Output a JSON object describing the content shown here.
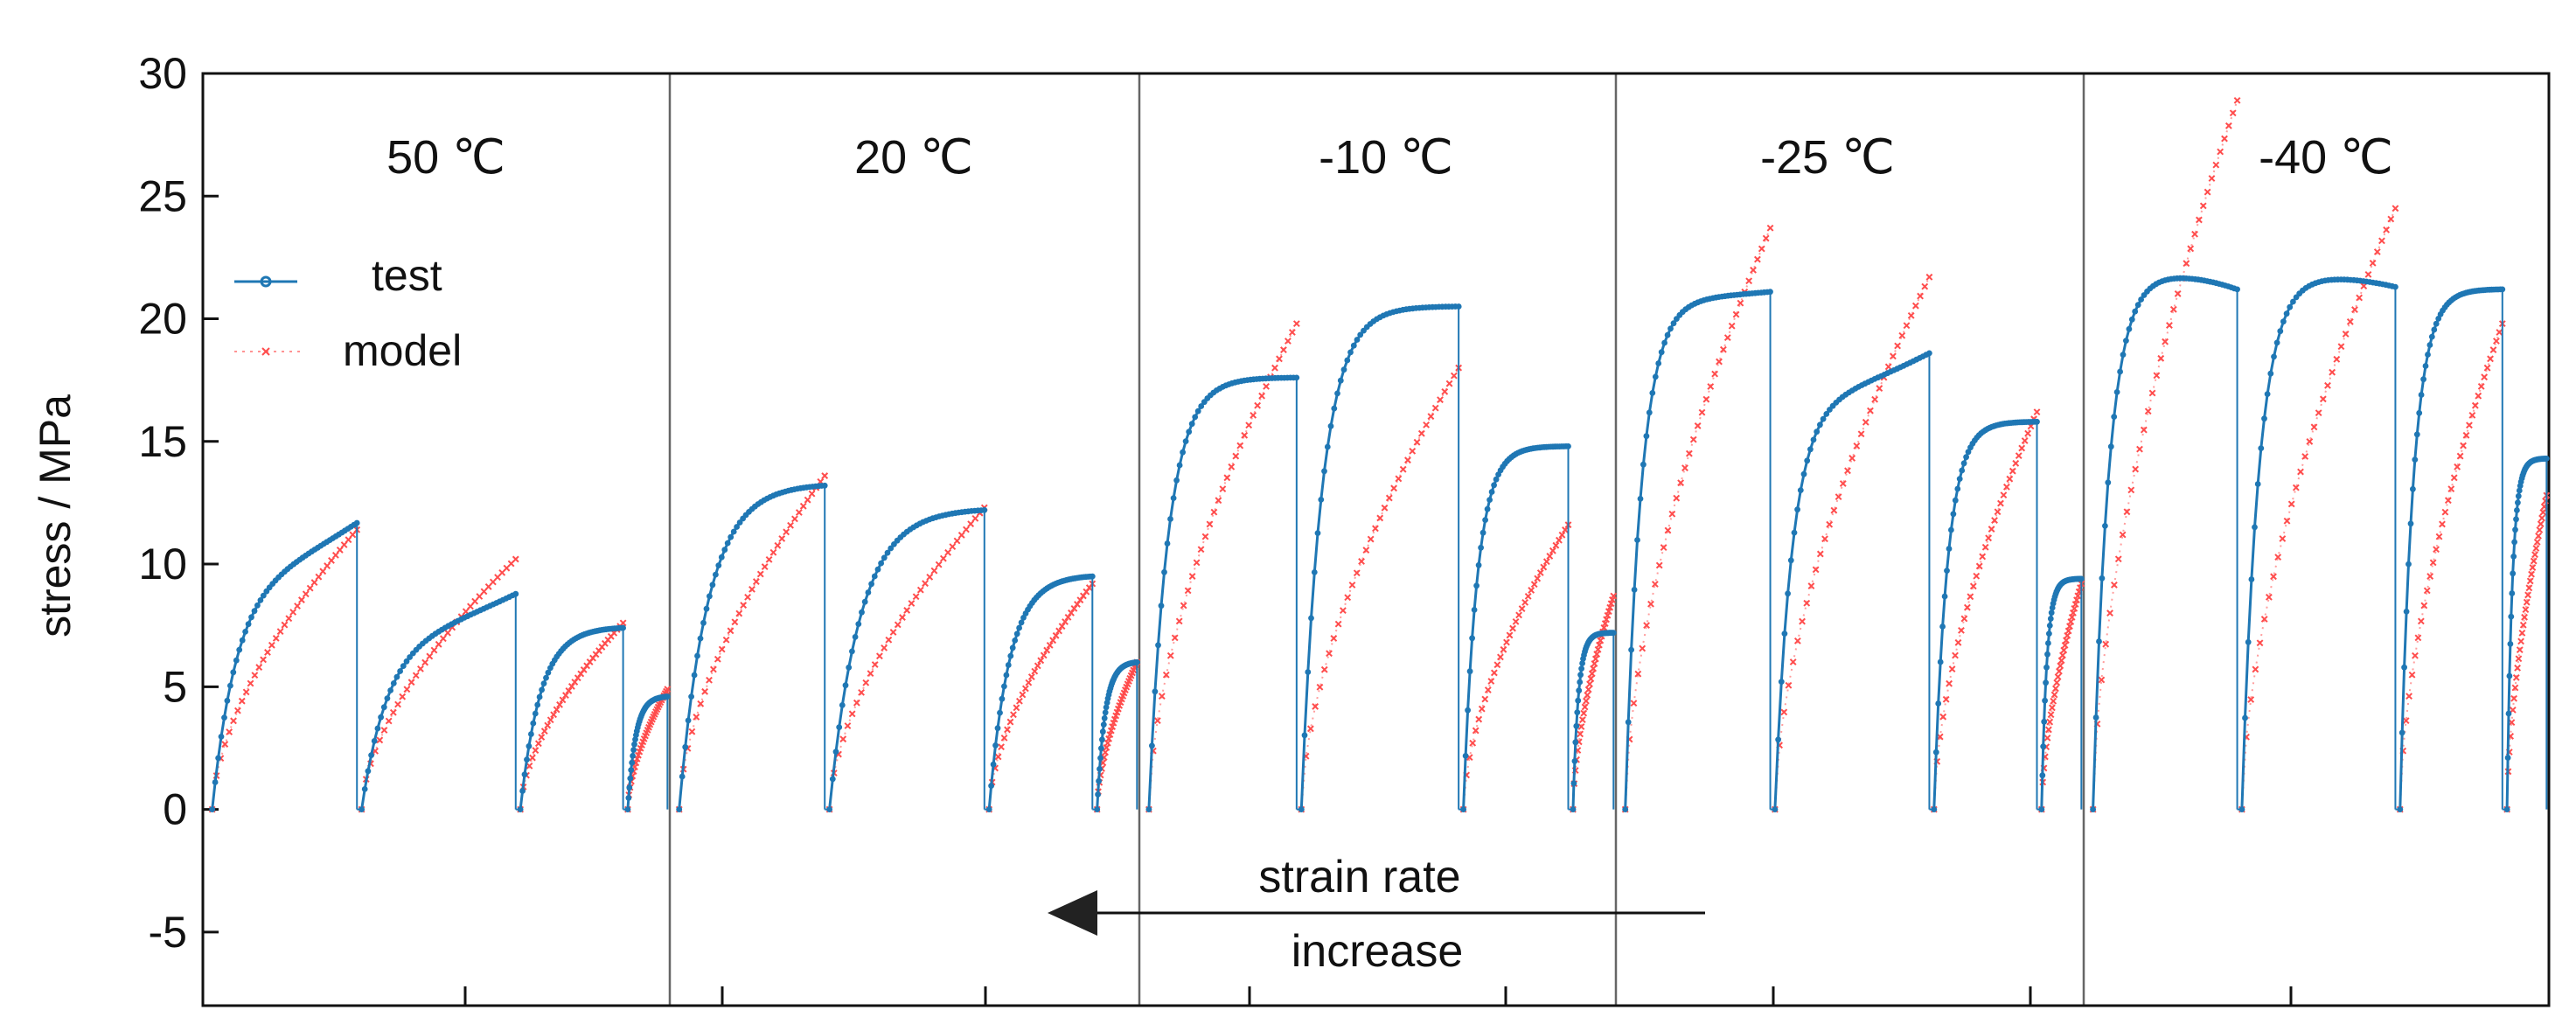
{
  "chart_data": {
    "type": "line",
    "ylabel": "stress / MPa",
    "ylim": [
      -8,
      30
    ],
    "yticks": [
      -5,
      0,
      5,
      10,
      15,
      20,
      25,
      30
    ],
    "xticks_labels": "none",
    "grid": false,
    "legend": {
      "placement": "top-left",
      "entries": [
        "test",
        "model"
      ]
    },
    "colors": {
      "test": "#1f77b4",
      "model": "#ff4d4d",
      "axis": "#111111"
    },
    "panels": [
      {
        "label": "50 ℃",
        "segments": [
          {
            "test_peak": 11.7,
            "model_peak": 11.4,
            "test_plateau": 9.4
          },
          {
            "test_peak": 8.8,
            "model_peak": 10.2,
            "test_plateau": 7.0
          },
          {
            "test_peak": 7.4,
            "model_peak": 7.6
          },
          {
            "test_peak": 4.6,
            "model_peak": 4.9
          }
        ]
      },
      {
        "label": "20 ℃",
        "segments": [
          {
            "test_peak": 13.2,
            "model_peak": 13.6
          },
          {
            "test_peak": 12.2,
            "model_peak": 12.3
          },
          {
            "test_peak": 9.5,
            "model_peak": 9.2
          },
          {
            "test_peak": 6.0,
            "model_peak": 6.0
          }
        ]
      },
      {
        "label": "-10 ℃",
        "segments": [
          {
            "test_peak": 17.6,
            "model_peak": 19.8
          },
          {
            "test_peak": 20.5,
            "model_peak": 18.0
          },
          {
            "test_peak": 14.8,
            "model_peak": 11.6
          },
          {
            "test_peak": 7.2,
            "model_peak": 8.7
          }
        ]
      },
      {
        "label": "-25 ℃",
        "segments": [
          {
            "test_peak": 21.1,
            "model_peak": 23.7,
            "test_plateau": 20.8
          },
          {
            "test_peak": 18.6,
            "model_peak": 21.7,
            "test_plateau": 16.6
          },
          {
            "test_peak": 15.8,
            "model_peak": 16.2
          },
          {
            "test_peak": 9.4,
            "model_peak": 9.2
          }
        ]
      },
      {
        "label": "-40 ℃",
        "segments": [
          {
            "test_peak": 21.2,
            "model_peak": 28.9,
            "test_plateau": 21.9
          },
          {
            "test_peak": 21.3,
            "model_peak": 24.5,
            "test_plateau": 21.8
          },
          {
            "test_peak": 21.2,
            "model_peak": 19.8
          },
          {
            "test_peak": 14.3,
            "model_peak": 12.8
          }
        ]
      }
    ]
  },
  "annotation": {
    "line1": "strain rate",
    "line2": "increase"
  }
}
